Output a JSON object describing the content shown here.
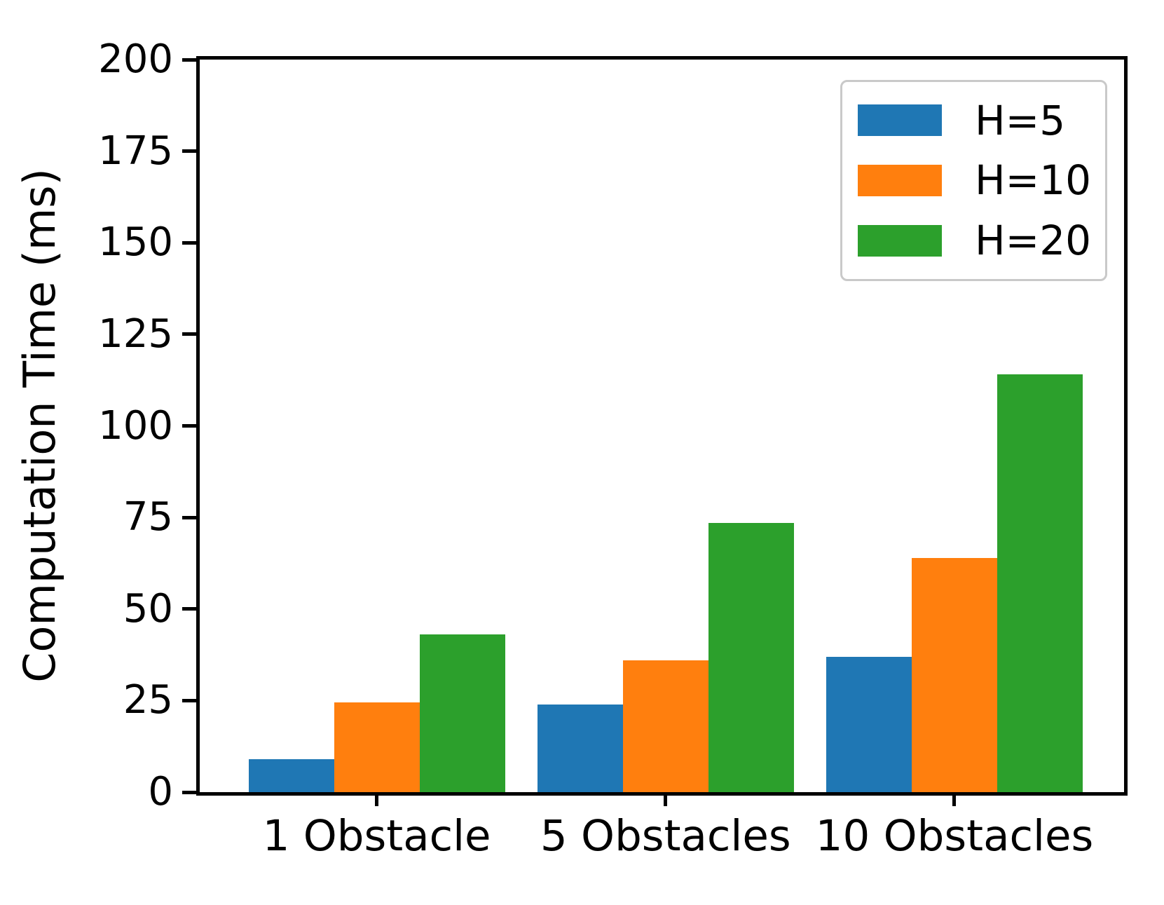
{
  "chart_data": {
    "type": "bar",
    "title": "",
    "xlabel": "",
    "ylabel": "Computation Time (ms)",
    "categories": [
      "1 Obstacle",
      "5 Obstacles",
      "10 Obstacles"
    ],
    "series": [
      {
        "name": "H=5",
        "color": "#1f77b4",
        "values": [
          9,
          24,
          37
        ]
      },
      {
        "name": "H=10",
        "color": "#ff7f0e",
        "values": [
          24.5,
          36,
          64
        ]
      },
      {
        "name": "H=20",
        "color": "#2ca02c",
        "values": [
          43,
          73.5,
          114
        ]
      }
    ],
    "ylim": [
      0,
      200
    ],
    "yticks": [
      0,
      25,
      50,
      75,
      100,
      125,
      150,
      175,
      200
    ],
    "grid": false,
    "legend_position": "upper right",
    "axis_color": "#000000",
    "plot_background": "#ffffff"
  }
}
